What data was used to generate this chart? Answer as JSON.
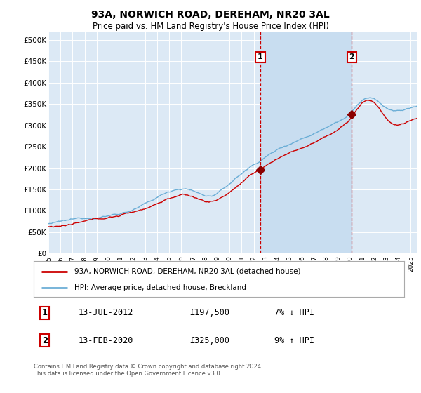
{
  "title": "93A, NORWICH ROAD, DEREHAM, NR20 3AL",
  "subtitle": "Price paid vs. HM Land Registry's House Price Index (HPI)",
  "yticks": [
    0,
    50000,
    100000,
    150000,
    200000,
    250000,
    300000,
    350000,
    400000,
    450000,
    500000
  ],
  "ytick_labels": [
    "£0",
    "£50K",
    "£100K",
    "£150K",
    "£200K",
    "£250K",
    "£300K",
    "£350K",
    "£400K",
    "£450K",
    "£500K"
  ],
  "xlim_start": 1995.0,
  "xlim_end": 2025.5,
  "ylim_min": 0,
  "ylim_max": 520000,
  "background_color": "#dce9f5",
  "shade_color": "#c8ddf0",
  "grid_color": "#ffffff",
  "hpi_color": "#6baed6",
  "price_color": "#cc0000",
  "marker_color": "#8b0000",
  "sale1_x": 2012.54,
  "sale1_y": 197500,
  "sale2_x": 2020.12,
  "sale2_y": 325000,
  "sale1_label": "1",
  "sale2_label": "2",
  "legend_line1": "93A, NORWICH ROAD, DEREHAM, NR20 3AL (detached house)",
  "legend_line2": "HPI: Average price, detached house, Breckland",
  "annotation1_num": "1",
  "annotation1_date": "13-JUL-2012",
  "annotation1_price": "£197,500",
  "annotation1_hpi": "7% ↓ HPI",
  "annotation2_num": "2",
  "annotation2_date": "13-FEB-2020",
  "annotation2_price": "£325,000",
  "annotation2_hpi": "9% ↑ HPI",
  "footer": "Contains HM Land Registry data © Crown copyright and database right 2024.\nThis data is licensed under the Open Government Licence v3.0.",
  "xtick_years": [
    1995,
    1996,
    1997,
    1998,
    1999,
    2000,
    2001,
    2002,
    2003,
    2004,
    2005,
    2006,
    2007,
    2008,
    2009,
    2010,
    2011,
    2012,
    2013,
    2014,
    2015,
    2016,
    2017,
    2018,
    2019,
    2020,
    2021,
    2022,
    2023,
    2024,
    2025
  ]
}
